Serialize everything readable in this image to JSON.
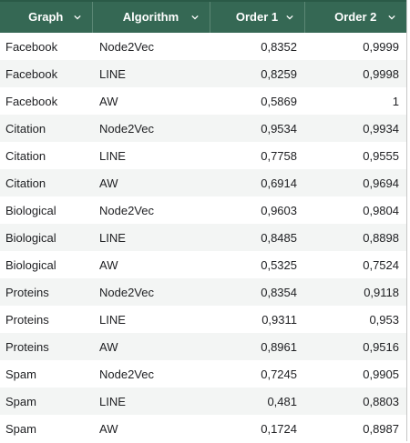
{
  "columns": [
    {
      "label": "Graph"
    },
    {
      "label": "Algorithm"
    },
    {
      "label": "Order 1"
    },
    {
      "label": "Order 2"
    }
  ],
  "icons": {
    "filter": "chevron-down-icon"
  },
  "colors": {
    "header_bg": "#356854",
    "band": "#f3f5f4"
  },
  "rows": [
    {
      "graph": "Facebook",
      "algorithm": "Node2Vec",
      "order1": "0,8352",
      "order2": "0,9999"
    },
    {
      "graph": "Facebook",
      "algorithm": "LINE",
      "order1": "0,8259",
      "order2": "0,9998"
    },
    {
      "graph": "Facebook",
      "algorithm": "AW",
      "order1": "0,5869",
      "order2": "1"
    },
    {
      "graph": "Citation",
      "algorithm": "Node2Vec",
      "order1": "0,9534",
      "order2": "0,9934"
    },
    {
      "graph": "Citation",
      "algorithm": "LINE",
      "order1": "0,7758",
      "order2": "0,9555"
    },
    {
      "graph": "Citation",
      "algorithm": "AW",
      "order1": "0,6914",
      "order2": "0,9694"
    },
    {
      "graph": "Biological",
      "algorithm": "Node2Vec",
      "order1": "0,9603",
      "order2": "0,9804"
    },
    {
      "graph": "Biological",
      "algorithm": "LINE",
      "order1": "0,8485",
      "order2": "0,8898"
    },
    {
      "graph": "Biological",
      "algorithm": "AW",
      "order1": "0,5325",
      "order2": "0,7524"
    },
    {
      "graph": "Proteins",
      "algorithm": "Node2Vec",
      "order1": "0,8354",
      "order2": "0,9118"
    },
    {
      "graph": "Proteins",
      "algorithm": "LINE",
      "order1": "0,9311",
      "order2": "0,953"
    },
    {
      "graph": "Proteins",
      "algorithm": "AW",
      "order1": "0,8961",
      "order2": "0,9516"
    },
    {
      "graph": "Spam",
      "algorithm": "Node2Vec",
      "order1": "0,7245",
      "order2": "0,9905"
    },
    {
      "graph": "Spam",
      "algorithm": "LINE",
      "order1": "0,481",
      "order2": "0,8803"
    },
    {
      "graph": "Spam",
      "algorithm": "AW",
      "order1": "0,1724",
      "order2": "0,8987"
    }
  ]
}
